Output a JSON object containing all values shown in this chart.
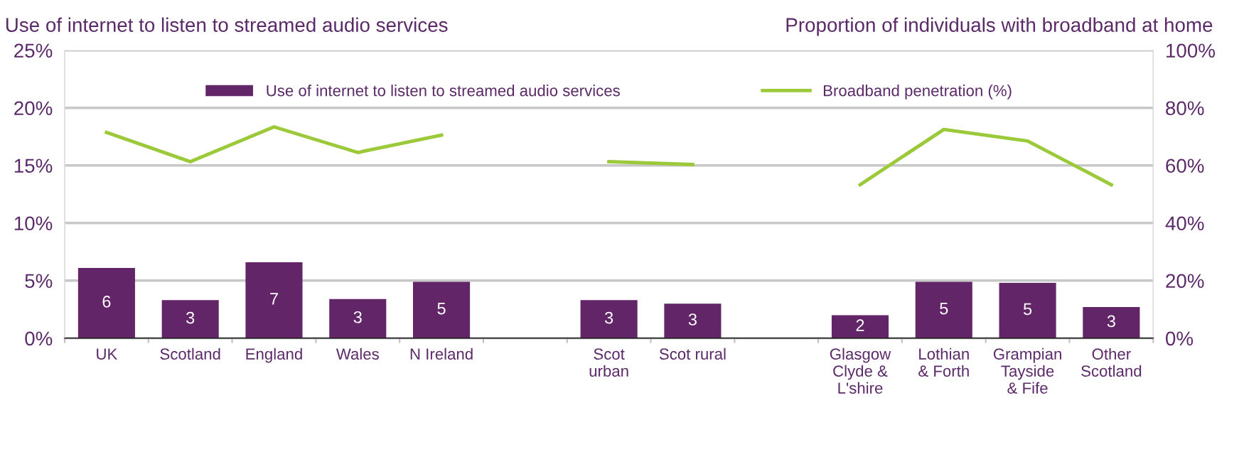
{
  "chart_data": {
    "type": "bar",
    "ylabel": "Use of internet to listen to streamed audio services",
    "y2label": "Proportion of individuals with broadband at home",
    "categories": [
      "UK",
      "Scotland",
      "England",
      "Wales",
      "N Ireland",
      null,
      "Scot\nurban",
      "Scot rural",
      null,
      "Glasgow\nClyde &\nL'shire",
      "Lothian\n& Forth",
      "Grampian\nTayside\n& Fife",
      "Other\nScotland"
    ],
    "series": [
      {
        "name": "Use of internet to listen to streamed audio services",
        "color": "#622567",
        "values": [
          6.1,
          3.3,
          6.6,
          3.4,
          4.9,
          null,
          3.3,
          3.0,
          null,
          2.0,
          4.9,
          4.8,
          2.7
        ],
        "value_labels": [
          "6",
          "3",
          "7",
          "3",
          "5",
          null,
          "3",
          "3",
          null,
          "2",
          "5",
          "5",
          "3"
        ]
      },
      {
        "name": "Broadband penetration (%)",
        "type": "line",
        "axis": "y2",
        "color": "#9bc93a",
        "values": [
          71.5,
          61.3,
          73.4,
          64.5,
          70.5,
          null,
          61.3,
          60.3,
          null,
          53.3,
          72.5,
          68.5,
          53.3
        ]
      }
    ],
    "ylim": [
      0,
      25
    ],
    "yticks": [
      {
        "value": 0,
        "label": "0%"
      },
      {
        "value": 5,
        "label": "5%"
      },
      {
        "value": 10,
        "label": "10%"
      },
      {
        "value": 15,
        "label": "15%"
      },
      {
        "value": 20,
        "label": "20%"
      },
      {
        "value": 25,
        "label": "25%"
      }
    ],
    "y2lim": [
      0,
      100
    ],
    "y2ticks": [
      {
        "value": 0,
        "label": "0%"
      },
      {
        "value": 20,
        "label": "20%"
      },
      {
        "value": 40,
        "label": "40%"
      },
      {
        "value": 60,
        "label": "60%"
      },
      {
        "value": 80,
        "label": "80%"
      },
      {
        "value": 100,
        "label": "100%"
      }
    ],
    "grid": "y",
    "legend": "top",
    "marker": "none",
    "line_style": "solid"
  }
}
